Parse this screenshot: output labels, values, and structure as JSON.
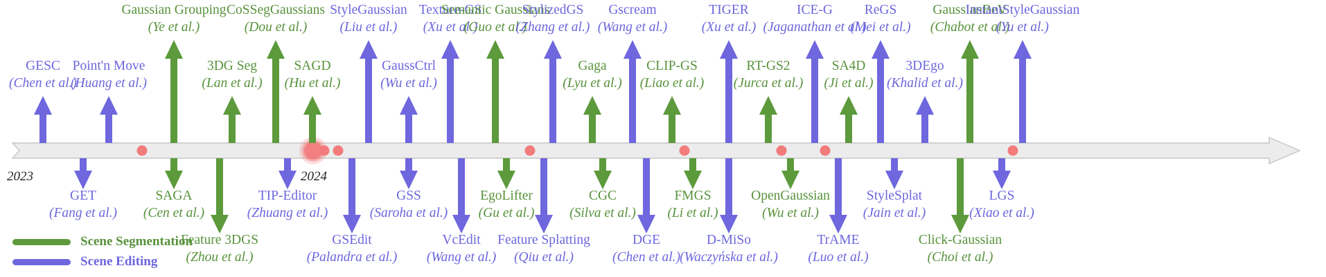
{
  "colors": {
    "segmentation": "#5c9a3c",
    "editing": "#6e67de",
    "timeline": "#ececec",
    "timeline_edge": "#bdbdbd",
    "dot": "#f27b7b"
  },
  "years": [
    "2023",
    "2024"
  ],
  "legend": [
    {
      "label": "Scene Segmentation",
      "kind": "seg"
    },
    {
      "label": "Scene Editing",
      "kind": "edt"
    }
  ],
  "items": [
    {
      "title": "GESC",
      "cite": "Chen et al.",
      "kind": "edt",
      "side": "up",
      "rank": 1
    },
    {
      "title": "GET",
      "cite": "Fang et al.",
      "kind": "edt",
      "side": "down",
      "rank": 1
    },
    {
      "title": "Point'n Move",
      "cite": "Huang et al.",
      "kind": "edt",
      "side": "up",
      "rank": 1
    },
    {
      "title": "Gaussian Grouping",
      "cite": "Ye et al.",
      "kind": "seg",
      "side": "up",
      "rank": 2
    },
    {
      "title": "SAGA",
      "cite": "Cen et al.",
      "kind": "seg",
      "side": "down",
      "rank": 1
    },
    {
      "title": "Feature 3DGS",
      "cite": "Zhou et al.",
      "kind": "seg",
      "side": "down",
      "rank": 2
    },
    {
      "title": "3DG Seg",
      "cite": "Lan et al.",
      "kind": "seg",
      "side": "up",
      "rank": 1
    },
    {
      "title": "CoSSegGaussians",
      "cite": "Dou et al.",
      "kind": "seg",
      "side": "up",
      "rank": 2
    },
    {
      "title": "TIP-Editor",
      "cite": "Zhuang et al.",
      "kind": "edt",
      "side": "down",
      "rank": 1
    },
    {
      "title": "SAGD",
      "cite": "Hu et al.",
      "kind": "seg",
      "side": "up",
      "rank": 1
    },
    {
      "title": "GSEdit",
      "cite": "Palandra et al.",
      "kind": "edt",
      "side": "down",
      "rank": 2
    },
    {
      "title": "StyleGaussian",
      "cite": "Liu et al.",
      "kind": "edt",
      "side": "up",
      "rank": 2
    },
    {
      "title": "GaussCtrl",
      "cite": "Wu et al.",
      "kind": "edt",
      "side": "up",
      "rank": 1
    },
    {
      "title": "GSS",
      "cite": "Saroha et al.",
      "kind": "edt",
      "side": "down",
      "rank": 1
    },
    {
      "title": "Texture-GS",
      "cite": "Xu et al.",
      "kind": "edt",
      "side": "up",
      "rank": 2
    },
    {
      "title": "VcEdit",
      "cite": "Wang et al.",
      "kind": "edt",
      "side": "down",
      "rank": 2
    },
    {
      "title": "Semantic Gaussians",
      "cite": "Guo et al.",
      "kind": "seg",
      "side": "up",
      "rank": 2
    },
    {
      "title": "EgoLifter",
      "cite": "Gu et al.",
      "kind": "seg",
      "side": "down",
      "rank": 1
    },
    {
      "title": "Feature Splatting",
      "cite": "Qiu et al.",
      "kind": "edt",
      "side": "down",
      "rank": 2
    },
    {
      "title": "StylizedGS",
      "cite": "Zhang et al.",
      "kind": "edt",
      "side": "up",
      "rank": 2
    },
    {
      "title": "Gaga",
      "cite": "Lyu et al.",
      "kind": "seg",
      "side": "up",
      "rank": 1
    },
    {
      "title": "CGC",
      "cite": "Silva et al.",
      "kind": "seg",
      "side": "down",
      "rank": 1
    },
    {
      "title": "Gscream",
      "cite": "Wang et al.",
      "kind": "edt",
      "side": "up",
      "rank": 2
    },
    {
      "title": "DGE",
      "cite": "Chen et al.",
      "kind": "edt",
      "side": "down",
      "rank": 2
    },
    {
      "title": "CLIP-GS",
      "cite": "Liao et al.",
      "kind": "seg",
      "side": "up",
      "rank": 1
    },
    {
      "title": "FMGS",
      "cite": "Li et al.",
      "kind": "seg",
      "side": "down",
      "rank": 1
    },
    {
      "title": "TIGER",
      "cite": "Xu et al.",
      "kind": "edt",
      "side": "up",
      "rank": 2
    },
    {
      "title": "D-MiSo",
      "cite": "Waczyńska et al.",
      "kind": "edt",
      "side": "down",
      "rank": 2
    },
    {
      "title": "RT-GS2",
      "cite": "Jurca et al.",
      "kind": "seg",
      "side": "up",
      "rank": 1
    },
    {
      "title": "OpenGaussian",
      "cite": "Wu et al.",
      "kind": "seg",
      "side": "down",
      "rank": 1
    },
    {
      "title": "ICE-G",
      "cite": "Jaganathan et al.",
      "kind": "edt",
      "side": "up",
      "rank": 2
    },
    {
      "title": "TrAME",
      "cite": "Luo et al.",
      "kind": "edt",
      "side": "down",
      "rank": 2
    },
    {
      "title": "SA4D",
      "cite": "Ji et al.",
      "kind": "seg",
      "side": "up",
      "rank": 1
    },
    {
      "title": "ReGS",
      "cite": "Mei et al.",
      "kind": "edt",
      "side": "up",
      "rank": 2
    },
    {
      "title": "StyleSplat",
      "cite": "Jain et al.",
      "kind": "edt",
      "side": "down",
      "rank": 1
    },
    {
      "title": "3DEgo",
      "cite": "Khalid et al.",
      "kind": "edt",
      "side": "up",
      "rank": 1
    },
    {
      "title": "Click-Gaussian",
      "cite": "Choi et al.",
      "kind": "seg",
      "side": "down",
      "rank": 2
    },
    {
      "title": "GaussianBeV",
      "cite": "Chabot et al.",
      "kind": "seg",
      "side": "up",
      "rank": 2
    },
    {
      "title": "LGS",
      "cite": "Xiao et al.",
      "kind": "edt",
      "side": "down",
      "rank": 1
    },
    {
      "title": "InstantStyleGaussian",
      "cite": "Yu et al.",
      "kind": "edt",
      "side": "up",
      "rank": 2
    }
  ]
}
